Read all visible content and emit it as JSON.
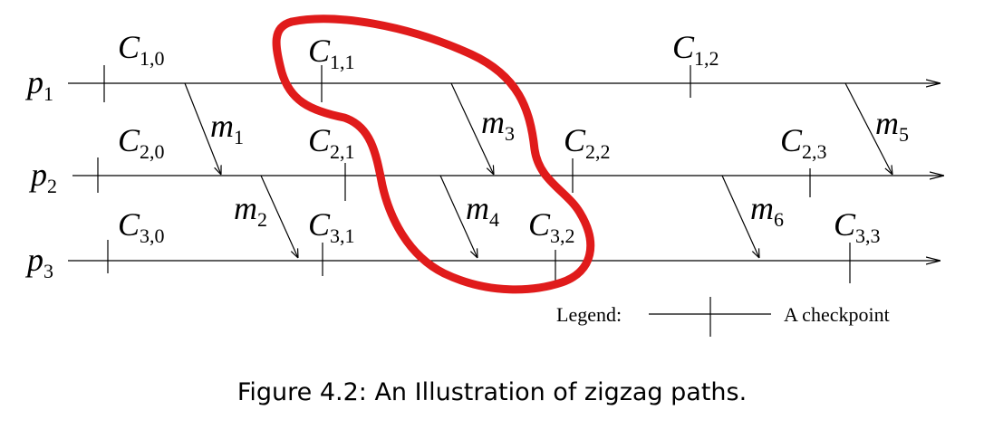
{
  "processes": [
    {
      "name": "p",
      "sub": "1"
    },
    {
      "name": "p",
      "sub": "2"
    },
    {
      "name": "p",
      "sub": "3"
    }
  ],
  "checkpoints": [
    {
      "main": "C",
      "sub": "1,0"
    },
    {
      "main": "C",
      "sub": "1,1"
    },
    {
      "main": "C",
      "sub": "1,2"
    },
    {
      "main": "C",
      "sub": "2,0"
    },
    {
      "main": "C",
      "sub": "2,1"
    },
    {
      "main": "C",
      "sub": "2,2"
    },
    {
      "main": "C",
      "sub": "2,3"
    },
    {
      "main": "C",
      "sub": "3,0"
    },
    {
      "main": "C",
      "sub": "3,1"
    },
    {
      "main": "C",
      "sub": "3,2"
    },
    {
      "main": "C",
      "sub": "3,3"
    }
  ],
  "messages": [
    {
      "main": "m",
      "sub": "1"
    },
    {
      "main": "m",
      "sub": "2"
    },
    {
      "main": "m",
      "sub": "3"
    },
    {
      "main": "m",
      "sub": "4"
    },
    {
      "main": "m",
      "sub": "5"
    },
    {
      "main": "m",
      "sub": "6"
    }
  ],
  "legend": {
    "label": "Legend:",
    "text": "A checkpoint"
  },
  "caption": "Figure 4.2: An Illustration of zigzag paths.",
  "colors": {
    "ink": "#000000",
    "highlight": "#e01b1b"
  }
}
